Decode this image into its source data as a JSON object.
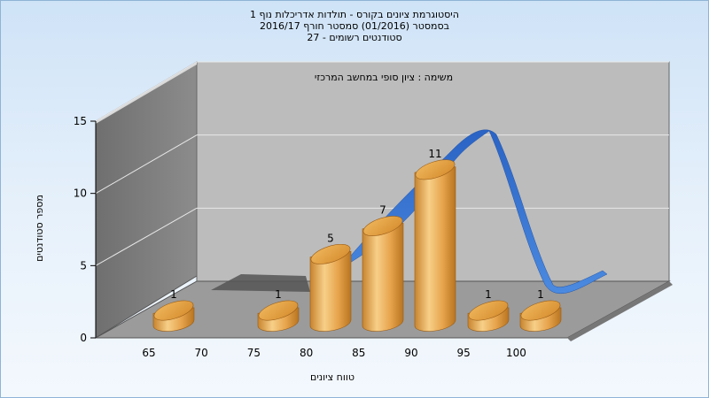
{
  "titles": {
    "line1": "היסטוגרמת ציונים בקורס - תולדות אדריכלות נוף 1",
    "line2": "בסמסטר  (01/2016)  סמסטר חורף 2016/17",
    "line3": "סטודנטים רשומים - 27"
  },
  "chart_data": {
    "type": "bar",
    "title": "היסטוגרמת ציונים בקורס - תולדות אדריכלות נוף 1",
    "subtitle": "משימה : ציון סופי במחשב המרכזי",
    "xlabel": "טווח ציונים",
    "ylabel": "מספר סטודנטים",
    "x_tick_labels": [
      "65",
      "70",
      "75",
      "80",
      "85",
      "90",
      "95",
      "100"
    ],
    "categories": [
      "65-70",
      "75-80",
      "80-85",
      "85-90",
      "90-95",
      "95-100",
      "100"
    ],
    "values": [
      1,
      1,
      5,
      7,
      11,
      1,
      1
    ],
    "y_ticks": [
      "0",
      "5",
      "10",
      "15"
    ],
    "ylim": [
      0,
      15
    ],
    "grid": true,
    "series": [
      {
        "name": "",
        "type": "bar",
        "values": [
          1,
          1,
          5,
          7,
          11,
          1,
          1
        ]
      }
    ],
    "colors": {
      "bar": "#e9a94c",
      "curve": "#3a78d6",
      "back_wall": "#bdbdbd",
      "side_wall": "#7c7c7c",
      "floor": "#9a9a9a"
    }
  }
}
